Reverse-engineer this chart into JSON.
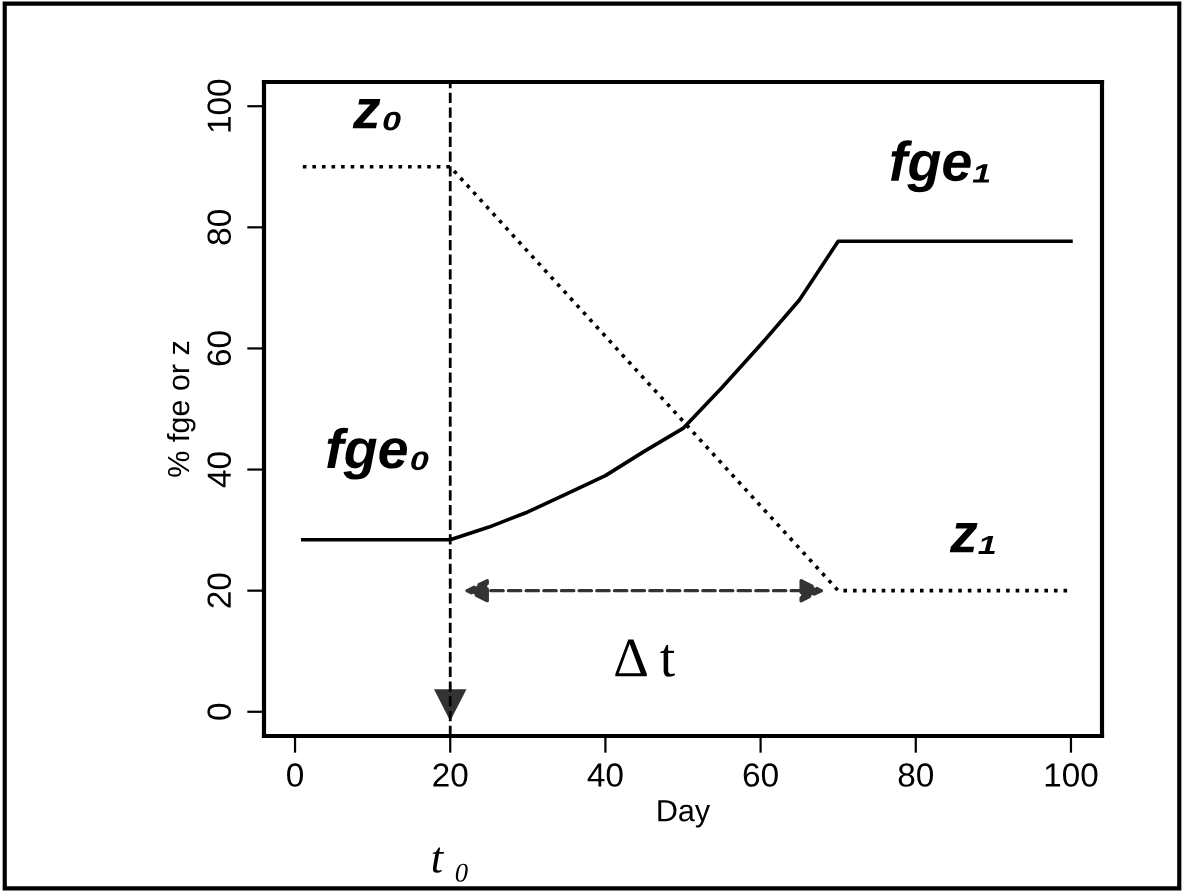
{
  "chart_data": {
    "type": "line",
    "xlabel": "Day",
    "ylabel": "% fge or z",
    "xlim": [
      -4,
      104
    ],
    "ylim": [
      -4,
      104
    ],
    "xticks": [
      0,
      20,
      40,
      60,
      80,
      100
    ],
    "yticks": [
      0,
      20,
      40,
      60,
      80,
      100
    ],
    "grid": false,
    "legend": false,
    "series": [
      {
        "color": "#000000",
        "line_style": "solid",
        "x": [
          1,
          20,
          25,
          30,
          35,
          40,
          45,
          50,
          55,
          60,
          65,
          70,
          100
        ],
        "values": [
          28.4,
          28.4,
          30.5,
          33,
          36,
          39,
          43,
          46.8,
          53.5,
          60.6,
          68,
          77.7,
          77.7
        ]
      },
      {
        "color": "#000000",
        "line_style": "dotted",
        "x": [
          1,
          20,
          70,
          100
        ],
        "values": [
          90,
          90,
          20,
          20
        ]
      }
    ],
    "ref_lines": [
      {
        "axis": "x",
        "value": 20,
        "line_style": "dashed",
        "color": "#000000"
      }
    ],
    "annotations": [
      "z₀",
      "fge₀",
      "fge₁",
      "z₁",
      "Δ t",
      "t ₀"
    ]
  }
}
